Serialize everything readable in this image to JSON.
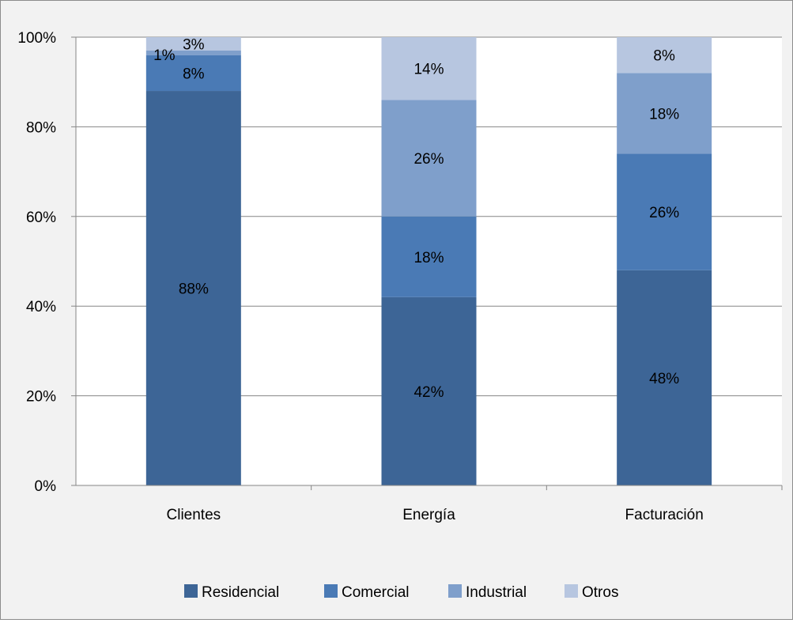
{
  "chart_data": {
    "type": "bar",
    "stacked": true,
    "percent": true,
    "title": "",
    "xlabel": "",
    "ylabel": "",
    "ylim": [
      0,
      100
    ],
    "yticks": [
      "0%",
      "20%",
      "40%",
      "60%",
      "80%",
      "100%"
    ],
    "grid": true,
    "legend_position": "bottom",
    "categories": [
      "Clientes",
      "Energía",
      "Facturación"
    ],
    "series": [
      {
        "name": "Residencial",
        "color": "#3d6596",
        "values": [
          88,
          42,
          48
        ],
        "labels": [
          "88%",
          "42%",
          "48%"
        ]
      },
      {
        "name": "Comercial",
        "color": "#4a7ab5",
        "values": [
          8,
          18,
          26
        ],
        "labels": [
          "8%",
          "18%",
          "26%"
        ]
      },
      {
        "name": "Industrial",
        "color": "#7f9fcb",
        "values": [
          1,
          26,
          18
        ],
        "labels": [
          "1%",
          "26%",
          "18%"
        ]
      },
      {
        "name": "Otros",
        "color": "#b7c6e0",
        "values": [
          3,
          14,
          8
        ],
        "labels": [
          "3%",
          "14%",
          "8%"
        ]
      }
    ]
  }
}
